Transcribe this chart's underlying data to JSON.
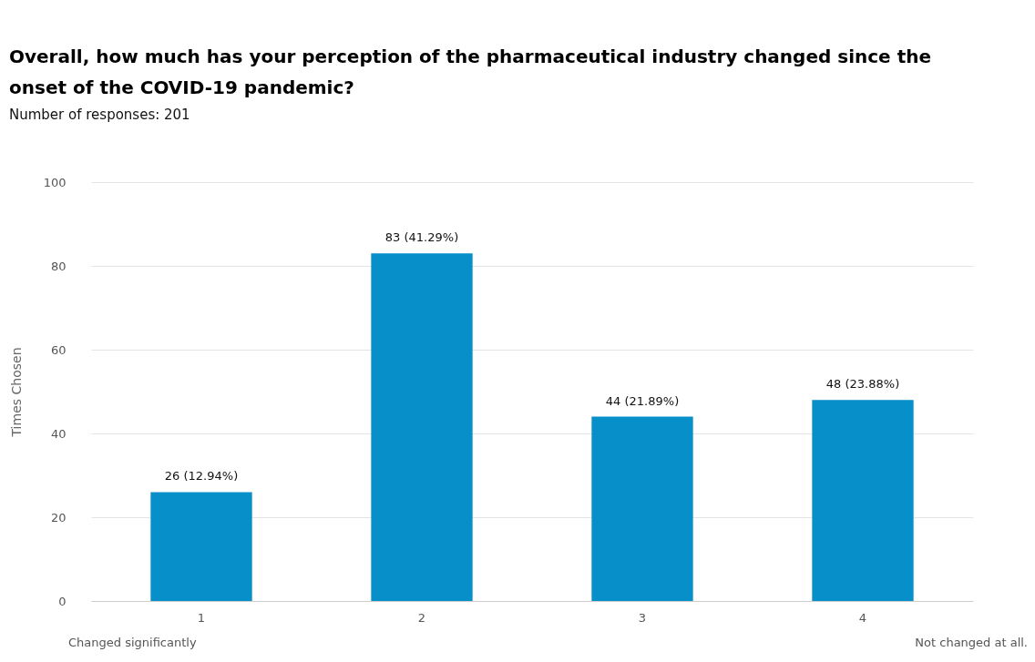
{
  "chart_data": {
    "type": "bar",
    "title": "Overall, how much has your perception of the pharmaceutical industry changed since the onset of the COVID-19 pandemic?",
    "subtitle": "Number of responses: 201",
    "ylabel": "Times Chosen",
    "categories": [
      "1",
      "2",
      "3",
      "4"
    ],
    "values": [
      26,
      83,
      44,
      48
    ],
    "value_labels": [
      "26 (12.94%)",
      "83 (41.29%)",
      "44 (21.89%)",
      "48 (23.88%)"
    ],
    "color": "#068fc9",
    "ylim": [
      0,
      100
    ],
    "yticks": [
      0,
      20,
      40,
      60,
      80,
      100
    ],
    "grid": "y",
    "annotations": [
      "Changed significantly",
      "Not changed at all."
    ]
  }
}
